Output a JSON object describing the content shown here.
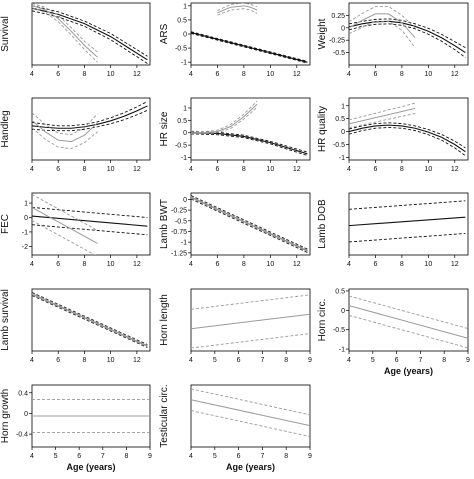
{
  "figure": {
    "x_axis_title": "Age (years)",
    "colors": {
      "primary": "#111111",
      "secondary": "#9a9a9a",
      "axis": "#000000"
    }
  },
  "chart_data": [
    {
      "id": "survival",
      "type": "line",
      "ylabel": "Survival",
      "xlim": [
        4,
        13
      ],
      "ylim": [
        -1.1,
        0.1
      ],
      "xticks": [
        4,
        6,
        8,
        10,
        12
      ],
      "yticks": [],
      "series": [
        {
          "style": "black",
          "x": [
            4,
            6,
            8,
            10,
            12.8
          ],
          "y": [
            0.0,
            -0.12,
            -0.3,
            -0.55,
            -1.0
          ],
          "band": [
            0.05,
            0.05,
            0.05,
            0.06,
            0.07
          ]
        },
        {
          "style": "grey",
          "x": [
            4,
            5,
            6,
            7,
            8,
            9
          ],
          "y": [
            0.05,
            -0.03,
            -0.2,
            -0.45,
            -0.72,
            -0.95
          ],
          "band": [
            0.04,
            0.05,
            0.06,
            0.07,
            0.08,
            0.1
          ]
        }
      ]
    },
    {
      "id": "ars",
      "type": "line",
      "ylabel": "ARS",
      "xlim": [
        4,
        13
      ],
      "ylim": [
        -1.1,
        1.1
      ],
      "xticks": [
        4,
        6,
        8,
        10,
        12
      ],
      "yticks": [
        1.0,
        0.5,
        0.0,
        -0.5,
        -1.0
      ],
      "series": [
        {
          "style": "black",
          "x": [
            4,
            12.8
          ],
          "y": [
            0.05,
            -1.0
          ],
          "band": [
            0.03,
            0.03
          ]
        },
        {
          "style": "grey",
          "x": [
            6,
            7,
            8,
            8.5,
            9
          ],
          "y": [
            0.75,
            0.95,
            1.0,
            0.95,
            0.85
          ],
          "band": [
            0.08,
            0.1,
            0.1,
            0.1,
            0.12
          ]
        }
      ]
    },
    {
      "id": "weight",
      "type": "line",
      "ylabel": "Weight",
      "xlim": [
        4,
        13
      ],
      "ylim": [
        -0.75,
        0.5
      ],
      "xticks": [
        4,
        6,
        8,
        10,
        12
      ],
      "yticks": [
        0.25,
        0.0,
        -0.25,
        -0.5
      ],
      "series": [
        {
          "style": "black",
          "x": [
            4,
            5,
            6,
            7,
            8,
            9,
            10,
            11,
            12,
            12.8
          ],
          "y": [
            0.02,
            0.08,
            0.12,
            0.13,
            0.1,
            0.03,
            -0.07,
            -0.2,
            -0.36,
            -0.5
          ],
          "band": [
            0.06,
            0.05,
            0.05,
            0.05,
            0.05,
            0.05,
            0.06,
            0.07,
            0.08,
            0.1
          ]
        },
        {
          "style": "grey",
          "x": [
            4,
            5,
            6,
            7,
            8,
            9
          ],
          "y": [
            0.0,
            0.15,
            0.28,
            0.28,
            0.1,
            -0.2
          ],
          "band": [
            0.12,
            0.14,
            0.15,
            0.15,
            0.15,
            0.2
          ]
        }
      ]
    },
    {
      "id": "handleg",
      "type": "line",
      "ylabel": "Handleg",
      "xlim": [
        4,
        13
      ],
      "ylim": [
        -0.75,
        0.5
      ],
      "xticks": [
        4,
        6,
        8,
        10,
        12
      ],
      "yticks": [],
      "series": [
        {
          "style": "black",
          "x": [
            4,
            5,
            6,
            7,
            8,
            9,
            10,
            11,
            12,
            12.8
          ],
          "y": [
            -0.06,
            -0.09,
            -0.11,
            -0.11,
            -0.08,
            -0.03,
            0.04,
            0.13,
            0.24,
            0.34
          ],
          "band": [
            0.07,
            0.06,
            0.05,
            0.05,
            0.05,
            0.05,
            0.06,
            0.07,
            0.08,
            0.09
          ]
        },
        {
          "style": "grey",
          "x": [
            4,
            5,
            6,
            7,
            8,
            9
          ],
          "y": [
            0.05,
            -0.18,
            -0.35,
            -0.38,
            -0.25,
            0.0
          ],
          "band": [
            0.15,
            0.15,
            0.14,
            0.14,
            0.15,
            0.18
          ]
        }
      ]
    },
    {
      "id": "hr_size",
      "type": "line",
      "ylabel": "HR size",
      "xlim": [
        4,
        13
      ],
      "ylim": [
        -1.1,
        1.4
      ],
      "xticks": [
        4,
        6,
        8,
        10,
        12
      ],
      "yticks": [
        1.0,
        0.5,
        0.0,
        -0.5,
        -1.0
      ],
      "series": [
        {
          "style": "black",
          "x": [
            4,
            6,
            8,
            10,
            12.8
          ],
          "y": [
            0.0,
            -0.03,
            -0.15,
            -0.4,
            -0.85
          ],
          "band": [
            0.05,
            0.05,
            0.05,
            0.05,
            0.07
          ]
        },
        {
          "style": "grey",
          "x": [
            4,
            5,
            6,
            7,
            8,
            9
          ],
          "y": [
            0.02,
            0.0,
            0.05,
            0.25,
            0.65,
            1.15
          ],
          "band": [
            0.05,
            0.04,
            0.05,
            0.08,
            0.1,
            0.12
          ]
        }
      ]
    },
    {
      "id": "hr_quality",
      "type": "line",
      "ylabel": "HR quality",
      "xlim": [
        4,
        13
      ],
      "ylim": [
        -1.1,
        1.3
      ],
      "xticks": [
        4,
        6,
        8,
        10,
        12
      ],
      "yticks": [
        1.0,
        0.5,
        0.0,
        -0.5,
        -1.0
      ],
      "series": [
        {
          "style": "black",
          "x": [
            4,
            5,
            6,
            7,
            8,
            9,
            10,
            11,
            12,
            12.8
          ],
          "y": [
            0.0,
            0.13,
            0.22,
            0.25,
            0.22,
            0.13,
            -0.02,
            -0.22,
            -0.5,
            -0.78
          ],
          "band": [
            0.1,
            0.09,
            0.09,
            0.09,
            0.09,
            0.09,
            0.1,
            0.11,
            0.13,
            0.15
          ]
        },
        {
          "style": "grey",
          "x": [
            4,
            9
          ],
          "y": [
            0.3,
            0.9
          ],
          "band": [
            0.15,
            0.2
          ]
        }
      ]
    },
    {
      "id": "fec",
      "type": "line",
      "ylabel": "FEC",
      "xlim": [
        4,
        13
      ],
      "ylim": [
        -2.6,
        1.7
      ],
      "xticks": [
        4,
        6,
        8,
        10,
        12
      ],
      "yticks": [
        1,
        0,
        -1,
        -2
      ],
      "series": [
        {
          "style": "black",
          "x": [
            4,
            12.8
          ],
          "y": [
            0.1,
            -0.6
          ],
          "band": [
            0.6,
            0.6
          ]
        },
        {
          "style": "grey",
          "x": [
            4,
            9
          ],
          "y": [
            0.7,
            -1.8
          ],
          "band": [
            0.9,
            0.9
          ]
        }
      ]
    },
    {
      "id": "lamb_bwt",
      "type": "line",
      "ylabel": "Lamb BWT",
      "xlim": [
        4,
        13
      ],
      "ylim": [
        -1.3,
        0.15
      ],
      "xticks": [
        4,
        6,
        8,
        10,
        12
      ],
      "yticks": [
        0.0,
        -0.25,
        -0.5,
        -0.75,
        -1.0,
        -1.25
      ],
      "series": [
        {
          "style": "black",
          "x": [
            4,
            12.8
          ],
          "y": [
            0.05,
            -1.2
          ],
          "band": [
            0.04,
            0.04
          ]
        },
        {
          "style": "grey",
          "x": [
            4,
            12.8
          ],
          "y": [
            0.05,
            -1.2
          ],
          "band": [
            0.02,
            0.02
          ]
        }
      ]
    },
    {
      "id": "lamb_dob",
      "type": "line",
      "ylabel": "Lamb DOB",
      "xlim": [
        4,
        13
      ],
      "ylim": [
        -0.5,
        0.45
      ],
      "xticks": [
        4,
        6,
        8,
        10,
        12
      ],
      "yticks": [],
      "series": [
        {
          "style": "black",
          "x": [
            4,
            12.8
          ],
          "y": [
            -0.05,
            0.08
          ],
          "band": [
            0.25,
            0.25
          ]
        }
      ]
    },
    {
      "id": "lamb_survival",
      "type": "line",
      "ylabel": "Lamb survival",
      "xlim": [
        4,
        13
      ],
      "ylim": [
        -1.15,
        0.1
      ],
      "xticks": [
        4,
        6,
        8,
        10,
        12
      ],
      "yticks": [],
      "series": [
        {
          "style": "black",
          "x": [
            4,
            12.8
          ],
          "y": [
            0.0,
            -1.05
          ],
          "band": [
            0.03,
            0.03
          ]
        },
        {
          "style": "grey",
          "x": [
            4,
            12.8
          ],
          "y": [
            0.0,
            -1.05
          ],
          "band": [
            0.015,
            0.015
          ]
        }
      ]
    },
    {
      "id": "horn_length",
      "type": "line",
      "ylabel": "Horn length",
      "xlim": [
        4,
        9
      ],
      "ylim": [
        -1.0,
        2.2
      ],
      "xticks": [
        4,
        5,
        6,
        7,
        8,
        9
      ],
      "yticks": [],
      "series": [
        {
          "style": "grey",
          "x": [
            4,
            9
          ],
          "y": [
            0.15,
            0.9
          ],
          "band": [
            1.0,
            1.0
          ]
        }
      ]
    },
    {
      "id": "horn_circ",
      "type": "line",
      "ylabel": "Horn circ.",
      "xlim": [
        4,
        9
      ],
      "ylim": [
        -1.05,
        0.55
      ],
      "xticks": [
        4,
        5,
        6,
        7,
        8,
        9
      ],
      "yticks": [
        0.5,
        0.0,
        -0.5,
        -1.0
      ],
      "series": [
        {
          "style": "grey",
          "x": [
            4,
            9
          ],
          "y": [
            0.12,
            -0.72
          ],
          "band": [
            0.25,
            0.25
          ]
        }
      ]
    },
    {
      "id": "horn_growth",
      "type": "line",
      "ylabel": "Horn growth",
      "xlim": [
        4,
        9
      ],
      "ylim": [
        -0.65,
        0.55
      ],
      "xticks": [
        4,
        5,
        6,
        7,
        8,
        9
      ],
      "yticks": [
        0.4,
        0.0,
        -0.4
      ],
      "series": [
        {
          "style": "grey",
          "x": [
            4,
            9
          ],
          "y": [
            -0.05,
            -0.05
          ],
          "band": [
            0.32,
            0.32
          ]
        }
      ]
    },
    {
      "id": "testicular_circ",
      "type": "line",
      "ylabel": "Testicular circ.",
      "xlim": [
        4,
        9
      ],
      "ylim": [
        -1.1,
        0.5
      ],
      "xticks": [
        4,
        5,
        6,
        7,
        8,
        9
      ],
      "yticks": [],
      "series": [
        {
          "style": "grey",
          "x": [
            4,
            9
          ],
          "y": [
            0.12,
            -0.55
          ],
          "band": [
            0.28,
            0.28
          ]
        }
      ]
    }
  ]
}
